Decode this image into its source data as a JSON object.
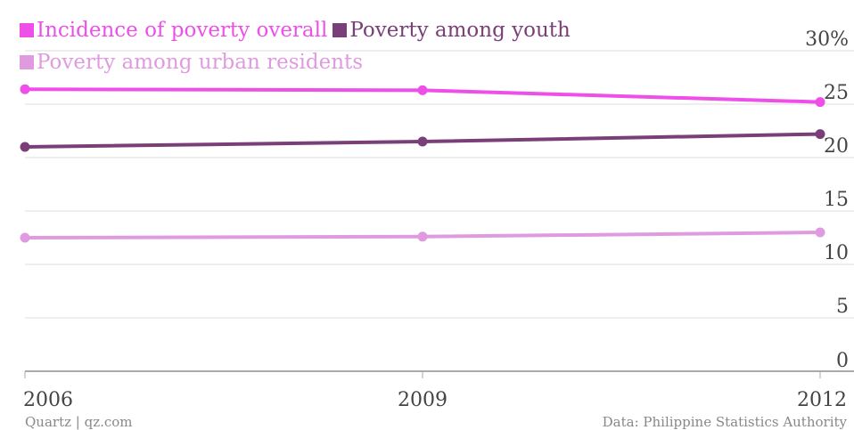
{
  "legend": {
    "overall": "Incidence of poverty overall",
    "youth": "Poverty among youth",
    "urban": "Poverty among urban residents"
  },
  "footer": {
    "source_left": "Quartz | qz.com",
    "source_right": "Data: Philippine Statistics Authority"
  },
  "colors": {
    "overall": "#ee4fe8",
    "youth": "#7a3f78",
    "urban": "#e09be0",
    "grid": "#dddddd",
    "baseline": "#aaaaaa",
    "tick_text": "#444444"
  },
  "chart_data": {
    "type": "line",
    "x": [
      "2006",
      "2009",
      "2012"
    ],
    "series": [
      {
        "name": "Incidence of poverty overall",
        "key": "overall",
        "values": [
          26.4,
          26.3,
          25.2
        ]
      },
      {
        "name": "Poverty among youth",
        "key": "youth",
        "values": [
          21.0,
          21.5,
          22.2
        ]
      },
      {
        "name": "Poverty among urban residents",
        "key": "urban",
        "values": [
          12.5,
          12.6,
          13.0
        ]
      }
    ],
    "y_ticks": [
      "0",
      "5",
      "10",
      "15",
      "20",
      "25",
      "30%"
    ],
    "ylim": [
      0,
      30
    ],
    "grid": true,
    "legend_position": "top-left"
  }
}
